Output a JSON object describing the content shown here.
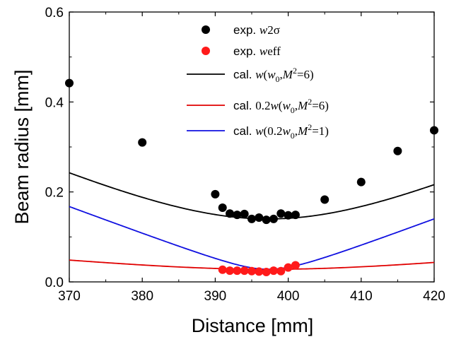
{
  "chart_data": {
    "type": "scatter",
    "xlabel": "Distance [mm]",
    "ylabel": "Beam radius [mm]",
    "xlim": [
      370,
      420
    ],
    "ylim": [
      0.0,
      0.6
    ],
    "xticks": [
      370,
      380,
      390,
      400,
      410,
      420
    ],
    "yticks": [
      0.0,
      0.2,
      0.4,
      0.6
    ],
    "xtick_labels": [
      "370",
      "380",
      "390",
      "400",
      "410",
      "420"
    ],
    "ytick_labels": [
      "0.0",
      "0.2",
      "0.4",
      "0.6"
    ],
    "grid": false,
    "legend_position": "top-center",
    "series": [
      {
        "kind": "scatter",
        "color": "#000000",
        "legend": {
          "prefix": "exp. ",
          "math": "w",
          "rest": "2σ"
        },
        "x": [
          370,
          380,
          390,
          391,
          392,
          393,
          394,
          395,
          396,
          397,
          398,
          399,
          400,
          401,
          405,
          410,
          415,
          420
        ],
        "y": [
          0.442,
          0.31,
          0.195,
          0.165,
          0.152,
          0.149,
          0.151,
          0.14,
          0.143,
          0.138,
          0.14,
          0.152,
          0.148,
          0.149,
          0.183,
          0.222,
          0.291,
          0.337
        ]
      },
      {
        "kind": "scatter",
        "color": "#ff1a1a",
        "legend": {
          "prefix": "exp. ",
          "math": "w",
          "rest": "eff"
        },
        "x": [
          391,
          392,
          393,
          394,
          395,
          396,
          397,
          398,
          399,
          400,
          401
        ],
        "y": [
          0.027,
          0.025,
          0.025,
          0.025,
          0.024,
          0.023,
          0.022,
          0.025,
          0.024,
          0.032,
          0.037
        ]
      },
      {
        "kind": "line",
        "color": "#000000",
        "legend": {
          "prefix": "cal. ",
          "pre_math": "",
          "math": "w",
          "open": "(",
          "w0": "w",
          "w0sub": "0",
          "sep": ",",
          "M": "M",
          "Msup": "2",
          "tail": "=6)"
        },
        "model": {
          "w0": 0.14,
          "M2": 6,
          "z0": 397.3,
          "scale": 1.0
        }
      },
      {
        "kind": "line",
        "color": "#e00000",
        "legend": {
          "prefix": "cal. ",
          "pre_math": "0.2",
          "math": "w",
          "open": "(",
          "w0": "w",
          "w0sub": "0",
          "sep": ",",
          "M": "M",
          "Msup": "2",
          "tail": "=6)"
        },
        "model": {
          "w0": 0.14,
          "M2": 6,
          "z0": 397.3,
          "scale": 0.2
        }
      },
      {
        "kind": "line",
        "color": "#1010e0",
        "legend": {
          "prefix": "cal. ",
          "pre_math": "",
          "math": "w",
          "open": "(0.2",
          "w0": "w",
          "w0sub": "0",
          "sep": ",",
          "M": "M",
          "Msup": "2",
          "tail": "=1)"
        },
        "model": {
          "w0": 0.028,
          "M2": 1,
          "z0": 397.3,
          "scale": 1.0
        }
      }
    ]
  }
}
